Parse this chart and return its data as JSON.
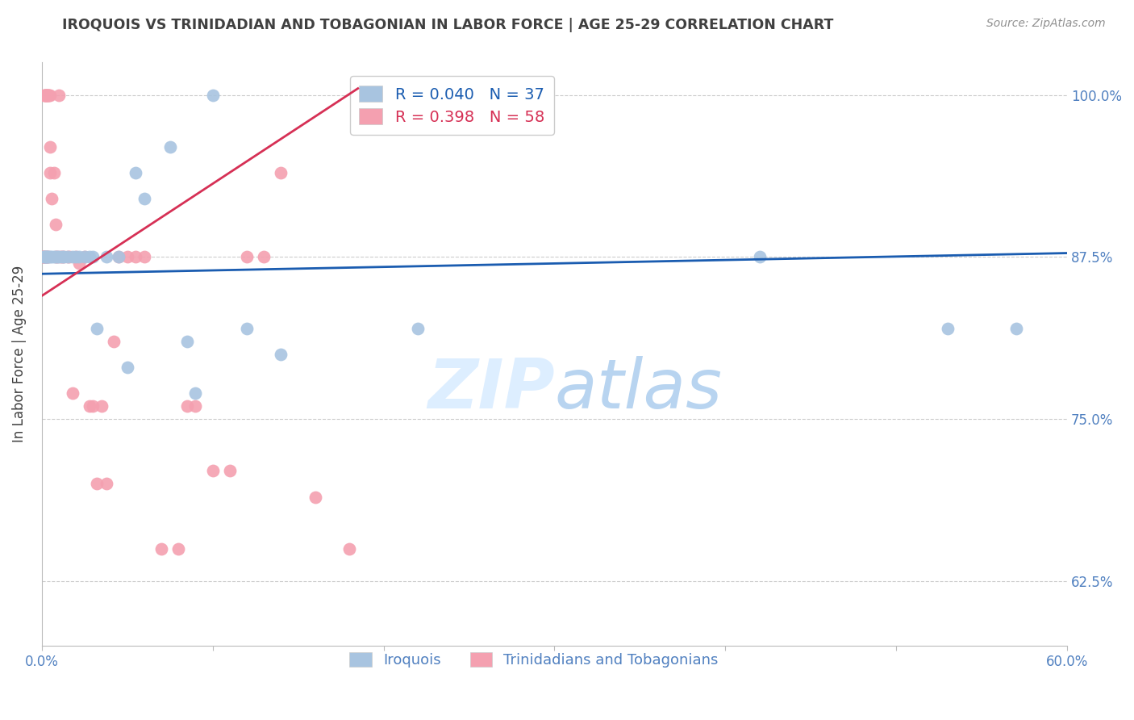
{
  "title": "IROQUOIS VS TRINIDADIAN AND TOBAGONIAN IN LABOR FORCE | AGE 25-29 CORRELATION CHART",
  "source": "Source: ZipAtlas.com",
  "ylabel": "In Labor Force | Age 25-29",
  "xlim": [
    0.0,
    0.6
  ],
  "ylim": [
    0.575,
    1.025
  ],
  "yticks": [
    0.625,
    0.75,
    0.875,
    1.0
  ],
  "ytick_labels": [
    "62.5%",
    "75.0%",
    "87.5%",
    "100.0%"
  ],
  "xticks": [
    0.0,
    0.1,
    0.2,
    0.3,
    0.4,
    0.5,
    0.6
  ],
  "xtick_labels": [
    "0.0%",
    "",
    "",
    "",
    "",
    "",
    "60.0%"
  ],
  "blue_R": 0.04,
  "blue_N": 37,
  "pink_R": 0.398,
  "pink_N": 58,
  "blue_color": "#a8c4e0",
  "pink_color": "#f4a0b0",
  "blue_line_color": "#1a5cb0",
  "pink_line_color": "#d63055",
  "legend_blue_label": "Iroquois",
  "legend_pink_label": "Trinidadians and Tobagonians",
  "title_color": "#404040",
  "axis_color": "#5080c0",
  "watermark_color": "#ddeeff",
  "blue_line_x": [
    0.0,
    0.6
  ],
  "blue_line_y": [
    0.862,
    0.878
  ],
  "pink_line_x": [
    0.0,
    0.185
  ],
  "pink_line_y": [
    0.845,
    1.005
  ],
  "blue_x": [
    0.001,
    0.002,
    0.002,
    0.003,
    0.003,
    0.004,
    0.005,
    0.006,
    0.007,
    0.008,
    0.009,
    0.01,
    0.012,
    0.013,
    0.015,
    0.018,
    0.02,
    0.022,
    0.025,
    0.028,
    0.03,
    0.032,
    0.038,
    0.045,
    0.05,
    0.055,
    0.06,
    0.075,
    0.085,
    0.09,
    0.1,
    0.12,
    0.14,
    0.22,
    0.42,
    0.53,
    0.57
  ],
  "blue_y": [
    0.875,
    0.875,
    0.875,
    0.875,
    0.875,
    0.875,
    0.875,
    0.875,
    0.875,
    0.875,
    0.875,
    0.875,
    0.875,
    0.875,
    0.875,
    0.875,
    0.875,
    0.875,
    0.875,
    0.875,
    0.875,
    0.82,
    0.875,
    0.875,
    0.79,
    0.94,
    0.92,
    0.96,
    0.81,
    0.77,
    1.0,
    0.82,
    0.8,
    0.82,
    0.875,
    0.82,
    0.82
  ],
  "pink_x": [
    0.001,
    0.001,
    0.001,
    0.001,
    0.001,
    0.002,
    0.002,
    0.002,
    0.002,
    0.002,
    0.003,
    0.003,
    0.003,
    0.003,
    0.003,
    0.004,
    0.004,
    0.004,
    0.004,
    0.005,
    0.005,
    0.005,
    0.006,
    0.007,
    0.008,
    0.008,
    0.009,
    0.01,
    0.011,
    0.012,
    0.013,
    0.015,
    0.016,
    0.018,
    0.02,
    0.022,
    0.025,
    0.028,
    0.03,
    0.032,
    0.035,
    0.038,
    0.042,
    0.045,
    0.05,
    0.055,
    0.06,
    0.07,
    0.08,
    0.085,
    0.09,
    0.1,
    0.11,
    0.12,
    0.13,
    0.14,
    0.16,
    0.18
  ],
  "pink_y": [
    0.875,
    0.875,
    0.875,
    0.875,
    1.0,
    1.0,
    1.0,
    1.0,
    1.0,
    0.875,
    1.0,
    1.0,
    1.0,
    0.875,
    0.875,
    1.0,
    1.0,
    1.0,
    0.875,
    1.0,
    0.96,
    0.94,
    0.92,
    0.94,
    0.9,
    0.875,
    0.875,
    1.0,
    0.875,
    0.875,
    0.875,
    0.875,
    0.875,
    0.77,
    0.875,
    0.87,
    0.875,
    0.76,
    0.76,
    0.7,
    0.76,
    0.7,
    0.81,
    0.875,
    0.875,
    0.875,
    0.875,
    0.65,
    0.65,
    0.76,
    0.76,
    0.71,
    0.71,
    0.875,
    0.875,
    0.94,
    0.69,
    0.65
  ]
}
